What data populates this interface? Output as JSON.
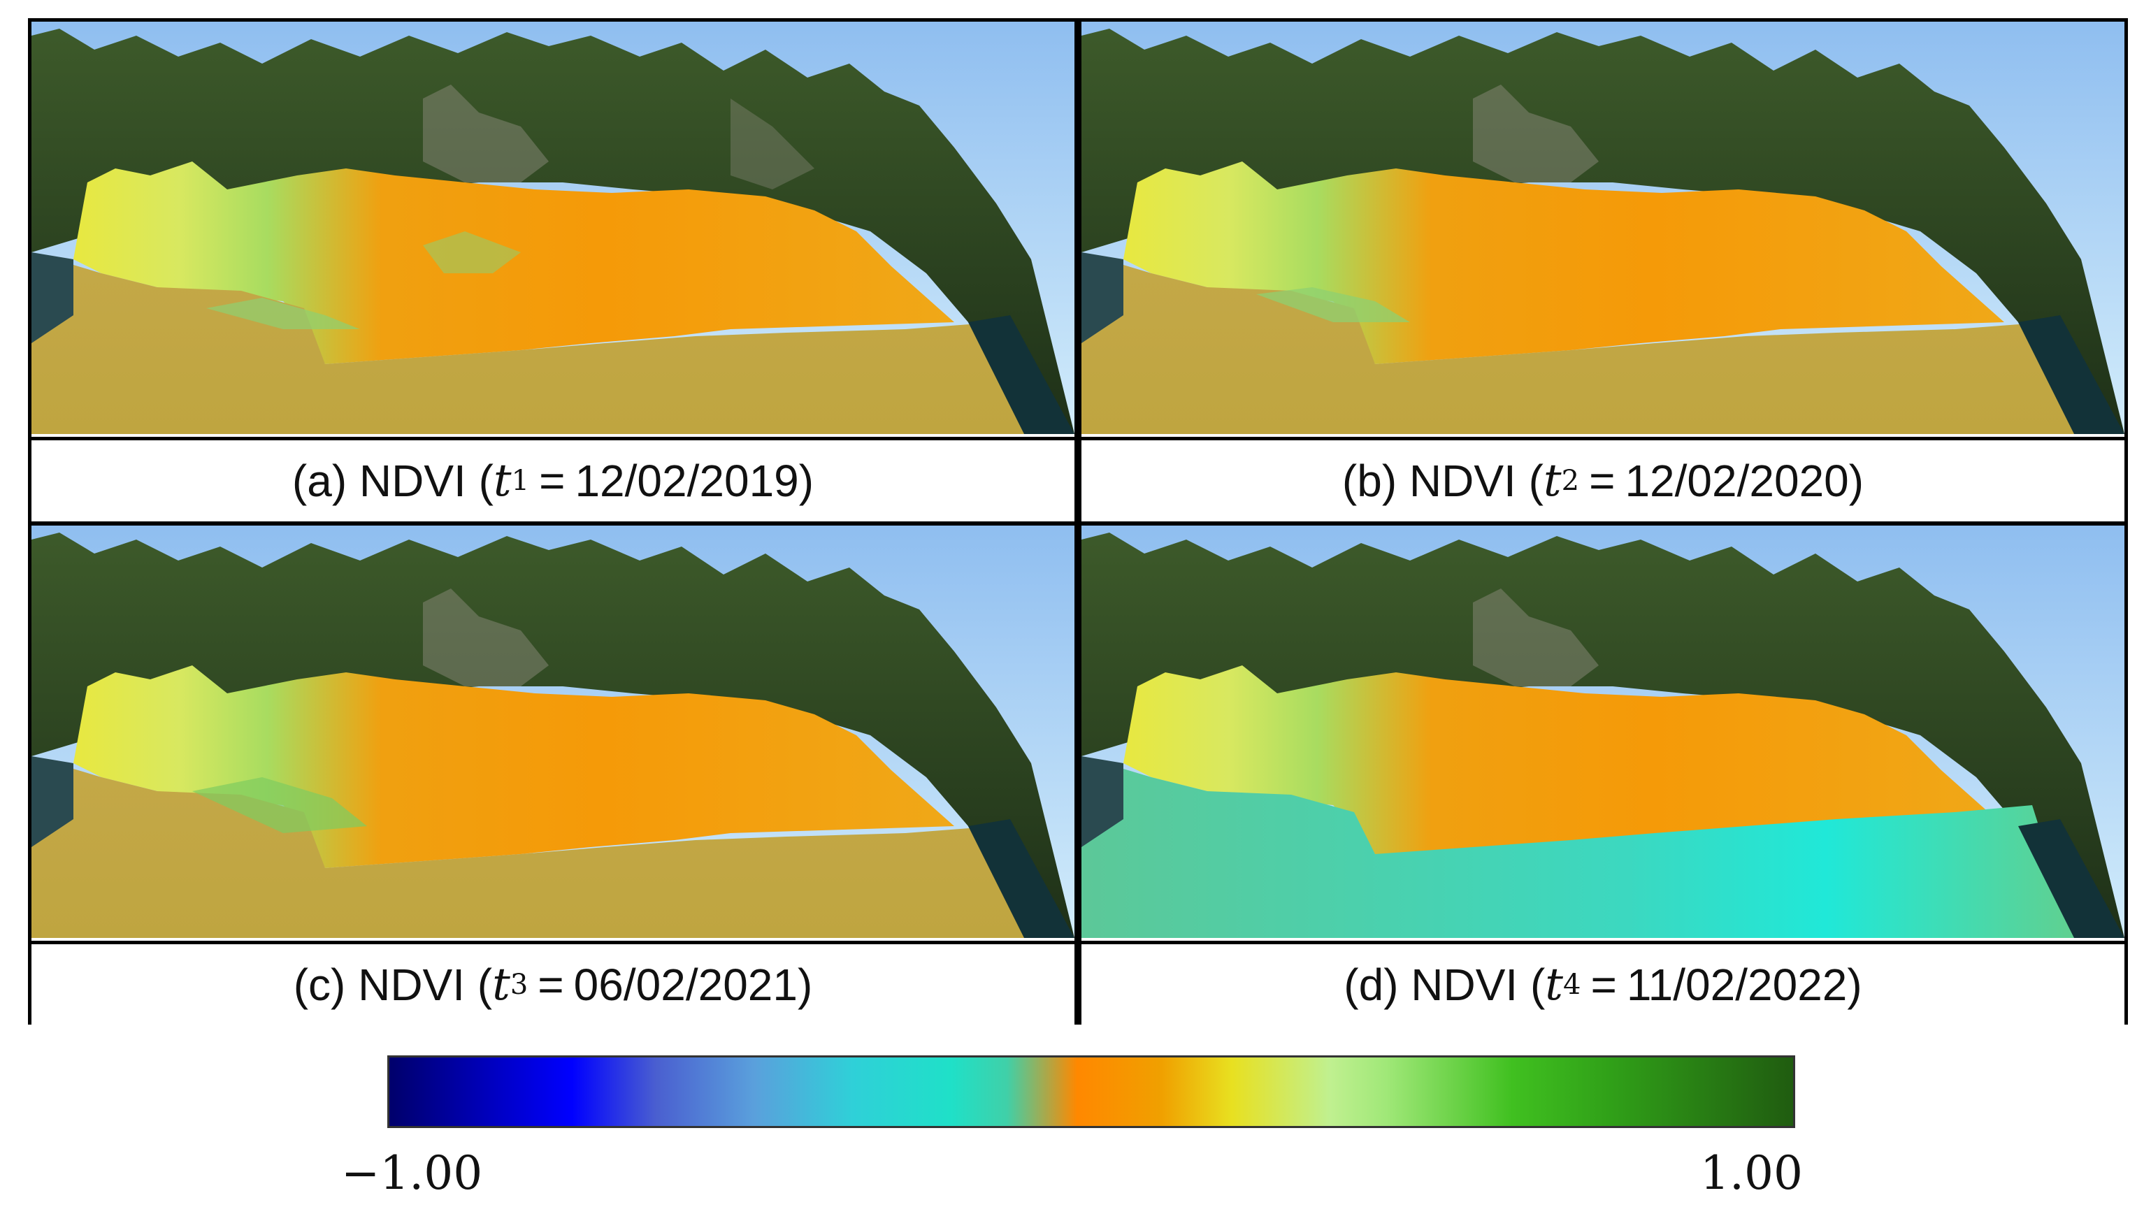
{
  "panels": [
    {
      "id": "a",
      "label_prefix": "(a) NDVI (",
      "var": "t",
      "sub": "1",
      "eq": "=",
      "date": "12/02/2019",
      "label_suffix": ")",
      "sea_tone": "olive"
    },
    {
      "id": "b",
      "label_prefix": "(b) NDVI (",
      "var": "t",
      "sub": "2",
      "eq": "=",
      "date": "12/02/2020",
      "label_suffix": ")",
      "sea_tone": "olive"
    },
    {
      "id": "c",
      "label_prefix": "(c) NDVI (",
      "var": "t",
      "sub": "3",
      "eq": "=",
      "date": "06/02/2021",
      "label_suffix": ")",
      "sea_tone": "olive"
    },
    {
      "id": "d",
      "label_prefix": "(d) NDVI (",
      "var": "t",
      "sub": "4",
      "eq": "=",
      "date": "11/02/2022",
      "label_suffix": ")",
      "sea_tone": "cyan"
    }
  ],
  "colorbar": {
    "min_label": "−1.00",
    "max_label": "1.00",
    "colors": [
      "#00006b",
      "#0000ff",
      "#5aa0dc",
      "#1fe0c8",
      "#ff8800",
      "#e8e020",
      "#c0f090",
      "#40c020",
      "#205c10"
    ]
  }
}
